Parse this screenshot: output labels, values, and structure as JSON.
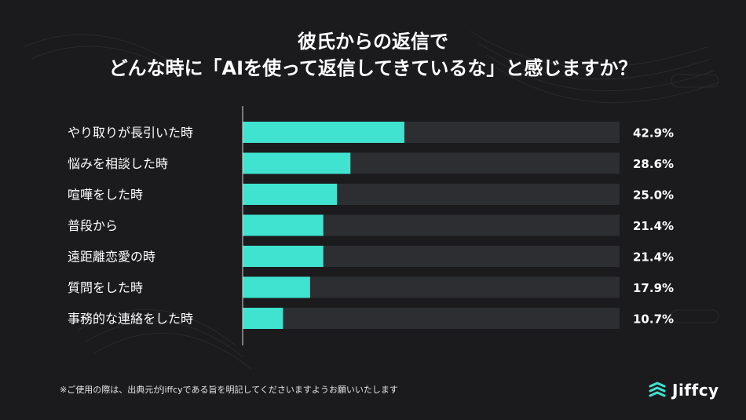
{
  "title_line1": "彼氏からの返信で",
  "title_line2": "どんな時に「AIを使って返信してきているな」と感じますか？",
  "footnote": "※ご使用の際は、出典元がJiffcyである旨を明記してくださいますようお願いいたします",
  "brand": {
    "name": "Jiffcy",
    "logo_icon": "stacked-chevrons-icon",
    "logo_color": "#3fe3cf"
  },
  "colors": {
    "bar": "#3fe3cf",
    "track": "#2d2e31",
    "background": "#1b1b1d",
    "text": "#ffffff"
  },
  "chart_data": {
    "type": "bar",
    "orientation": "horizontal",
    "categories": [
      "やり取りが長引いた時",
      "悩みを相談した時",
      "喧嘩をした時",
      "普段から",
      "遠距離恋愛の時",
      "質問をした時",
      "事務的な連絡をした時"
    ],
    "values": [
      42.9,
      28.6,
      25.0,
      21.4,
      21.4,
      17.9,
      10.7
    ],
    "labels": [
      "42.9%",
      "28.6%",
      "25.0%",
      "21.4%",
      "21.4%",
      "17.9%",
      "10.7%"
    ],
    "unit": "%",
    "xlim": [
      0,
      100
    ],
    "grid": false,
    "legend": "none"
  }
}
